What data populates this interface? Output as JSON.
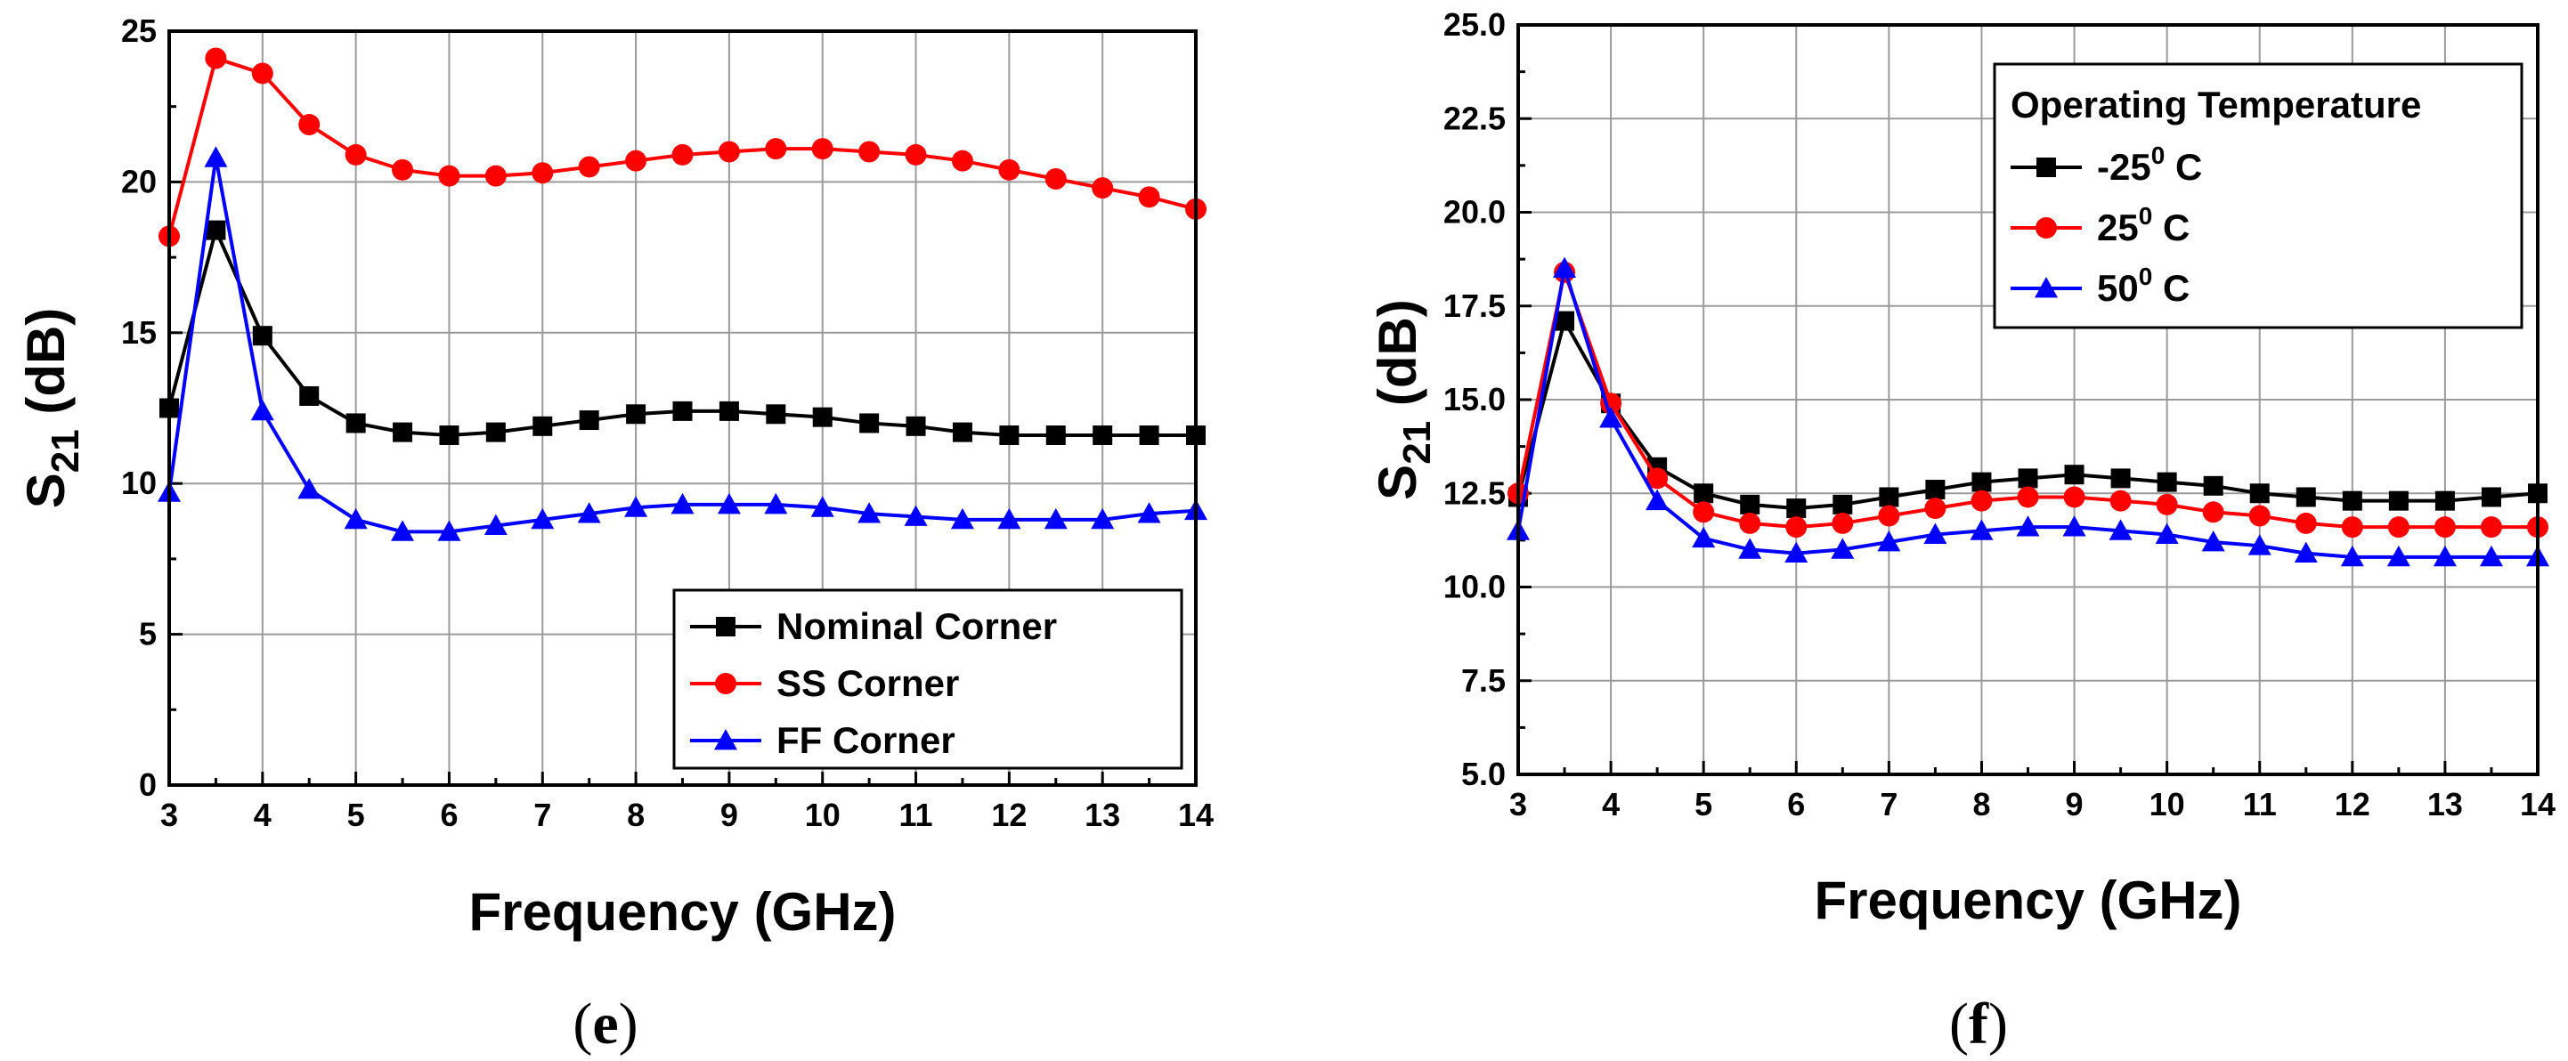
{
  "chart_data": [
    {
      "type": "line",
      "panel": "e",
      "caption_letter": "e",
      "title": "",
      "xlabel": "Frequency (GHz)",
      "ylabel": "S21 (dB)",
      "ylabel_main": "S",
      "ylabel_sub": "21",
      "ylabel_rest": " (dB)",
      "xlim": [
        3,
        14
      ],
      "ylim": [
        0,
        25
      ],
      "xticks": [
        3,
        4,
        5,
        6,
        7,
        8,
        9,
        10,
        11,
        12,
        13,
        14
      ],
      "yticks": [
        0,
        5,
        10,
        15,
        20,
        25
      ],
      "ytick_labels": [
        "0",
        "5",
        "10",
        "15",
        "20",
        "25"
      ],
      "grid": true,
      "legend_position": "bottom-right",
      "x": [
        3,
        3.5,
        4,
        4.5,
        5,
        5.5,
        6,
        6.5,
        7,
        7.5,
        8,
        8.5,
        9,
        9.5,
        10,
        10.5,
        11,
        11.5,
        12,
        12.5,
        13,
        13.5,
        14
      ],
      "series": [
        {
          "name": "Nominal Corner",
          "color": "#000000",
          "marker": "square",
          "values": [
            12.5,
            18.4,
            14.9,
            12.9,
            12.0,
            11.7,
            11.6,
            11.7,
            11.9,
            12.1,
            12.3,
            12.4,
            12.4,
            12.3,
            12.2,
            12.0,
            11.9,
            11.7,
            11.6,
            11.6,
            11.6,
            11.6,
            11.6
          ]
        },
        {
          "name": "SS Corner",
          "color": "#ff0000",
          "marker": "circle",
          "values": [
            18.2,
            24.1,
            23.6,
            21.9,
            20.9,
            20.4,
            20.2,
            20.2,
            20.3,
            20.5,
            20.7,
            20.9,
            21.0,
            21.1,
            21.1,
            21.0,
            20.9,
            20.7,
            20.4,
            20.1,
            19.8,
            19.5,
            19.1
          ]
        },
        {
          "name": "FF Corner",
          "color": "#0000ff",
          "marker": "triangle",
          "values": [
            9.7,
            20.8,
            12.4,
            9.8,
            8.8,
            8.4,
            8.4,
            8.6,
            8.8,
            9.0,
            9.2,
            9.3,
            9.3,
            9.3,
            9.2,
            9.0,
            8.9,
            8.8,
            8.8,
            8.8,
            8.8,
            9.0,
            9.1
          ]
        }
      ]
    },
    {
      "type": "line",
      "panel": "f",
      "caption_letter": "f",
      "title": "",
      "xlabel": "Frequency (GHz)",
      "ylabel": "S21 (dB)",
      "ylabel_main": "S",
      "ylabel_sub": "21",
      "ylabel_rest": " (dB)",
      "xlim": [
        3,
        14
      ],
      "ylim": [
        5,
        25
      ],
      "xticks": [
        3,
        4,
        5,
        6,
        7,
        8,
        9,
        10,
        11,
        12,
        13,
        14
      ],
      "yticks": [
        5,
        7.5,
        10,
        12.5,
        15,
        17.5,
        20,
        22.5,
        25
      ],
      "ytick_labels": [
        "5.0",
        "7.5",
        "10.0",
        "12.5",
        "15.0",
        "17.5",
        "20.0",
        "22.5",
        "25.0"
      ],
      "grid": true,
      "legend_position": "top-right",
      "legend_title": "Operating Temperature",
      "x": [
        3,
        3.5,
        4,
        4.5,
        5,
        5.5,
        6,
        6.5,
        7,
        7.5,
        8,
        8.5,
        9,
        9.5,
        10,
        10.5,
        11,
        11.5,
        12,
        12.5,
        13,
        13.5,
        14
      ],
      "series": [
        {
          "name": "-25⁰ C",
          "label_main": "-25",
          "label_sup": "0",
          "label_rest": " C",
          "color": "#000000",
          "marker": "square",
          "values": [
            12.4,
            17.1,
            14.9,
            13.2,
            12.5,
            12.2,
            12.1,
            12.2,
            12.4,
            12.6,
            12.8,
            12.9,
            13.0,
            12.9,
            12.8,
            12.7,
            12.5,
            12.4,
            12.3,
            12.3,
            12.3,
            12.4,
            12.5
          ]
        },
        {
          "name": "25⁰ C",
          "label_main": "25",
          "label_sup": "0",
          "label_rest": " C",
          "color": "#ff0000",
          "marker": "circle",
          "values": [
            12.5,
            18.4,
            14.9,
            12.9,
            12.0,
            11.7,
            11.6,
            11.7,
            11.9,
            12.1,
            12.3,
            12.4,
            12.4,
            12.3,
            12.2,
            12.0,
            11.9,
            11.7,
            11.6,
            11.6,
            11.6,
            11.6,
            11.6
          ]
        },
        {
          "name": "50⁰ C",
          "label_main": "50",
          "label_sup": "0",
          "label_rest": " C",
          "color": "#0000ff",
          "marker": "triangle",
          "values": [
            11.5,
            18.5,
            14.5,
            12.3,
            11.3,
            11.0,
            10.9,
            11.0,
            11.2,
            11.4,
            11.5,
            11.6,
            11.6,
            11.5,
            11.4,
            11.2,
            11.1,
            10.9,
            10.8,
            10.8,
            10.8,
            10.8,
            10.8
          ]
        }
      ]
    }
  ]
}
